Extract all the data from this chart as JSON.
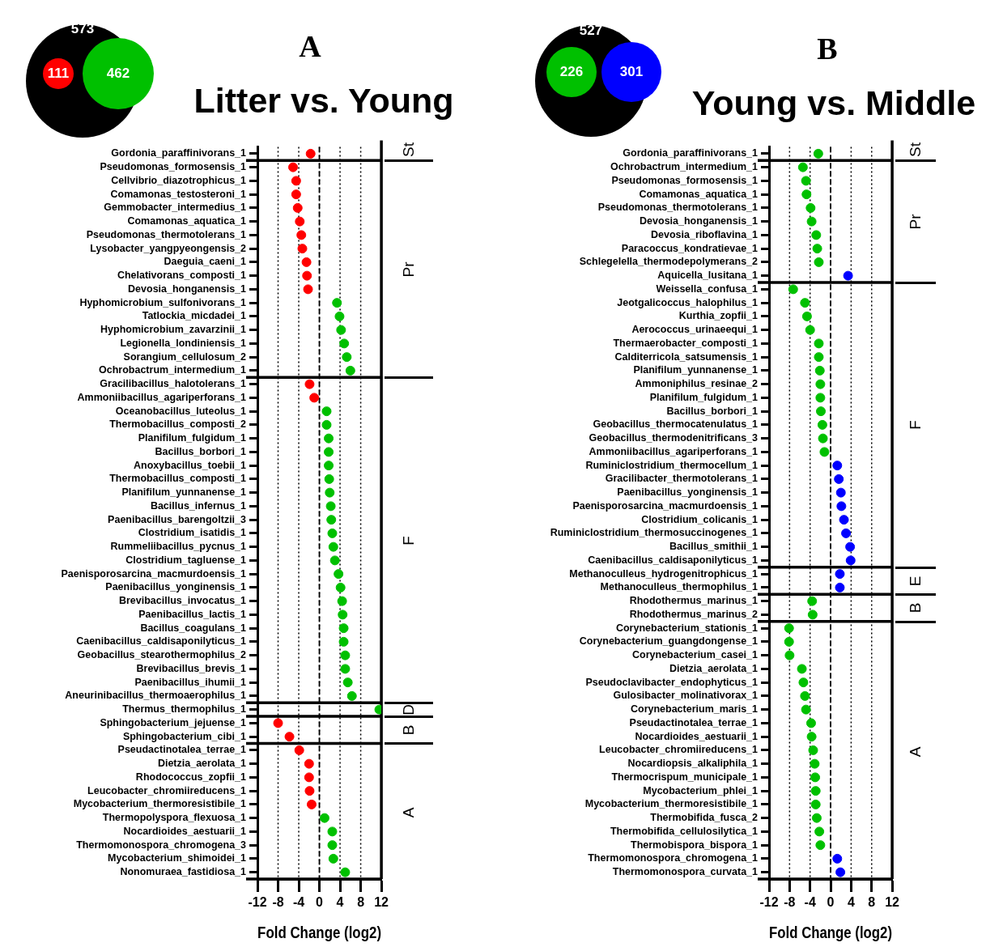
{
  "chart_data": [
    {
      "type": "scatter",
      "title": "Litter vs. Young",
      "xlabel": "Fold Change (log2)",
      "annotations": [
        "A",
        "573",
        "111",
        "462"
      ],
      "categories": [
        "Gordonia_paraffinivorans_1",
        "Pseudomonas_formosensis_1",
        "Cellvibrio_diazotrophicus_1",
        "Comamonas_testosteroni_1",
        "Gemmobacter_intermedius_1",
        "Comamonas_aquatica_1",
        "Pseudomonas_thermotolerans_1",
        "Lysobacter_yangpyeongensis_2",
        "Daeguia_caeni_1",
        "Chelativorans_composti_1",
        "Devosia_honganensis_1",
        "Hyphomicrobium_sulfonivorans_1",
        "Tatlockia_micdadei_1",
        "Hyphomicrobium_zavarzinii_1",
        "Legionella_londiniensis_1",
        "Sorangium_cellulosum_2",
        "Ochrobactrum_intermedium_1",
        "Gracilibacillus_halotolerans_1",
        "Ammoniibacillus_agariperforans_1",
        "Oceanobacillus_luteolus_1",
        "Thermobacillus_composti_2",
        "Planifilum_fulgidum_1",
        "Bacillus_borbori_1",
        "Anoxybacillus_toebii_1",
        "Thermobacillus_composti_1",
        "Planifilum_yunnanense_1",
        "Bacillus_infernus_1",
        "Paenibacillus_barengoltzii_3",
        "Clostridium_isatidis_1",
        "Rummeliibacillus_pycnus_1",
        "Clostridium_tagluense_1",
        "Paenisporosarcina_macmurdoensis_1",
        "Paenibacillus_yonginensis_1",
        "Brevibacillus_invocatus_1",
        "Paenibacillus_lactis_1",
        "Bacillus_coagulans_1",
        "Caenibacillus_caldisaponilyticus_1",
        "Geobacillus_stearothermophilus_2",
        "Brevibacillus_brevis_1",
        "Paenibacillus_ihumii_1",
        "Aneurinibacillus_thermoaerophilus_1",
        "Thermus_thermophilus_1",
        "Sphingobacterium_jejuense_1",
        "Sphingobacterium_cibi_1",
        "Pseudactinotalea_terrae_1",
        "Dietzia_aerolata_1",
        "Rhodococcus_zopfii_1",
        "Leucobacter_chromiireducens_1",
        "Mycobacterium_thermoresistibile_1",
        "Thermopolyspora_flexuosa_1",
        "Nocardioides_aestuarii_1",
        "Thermomonospora_chromogena_3",
        "Mycobacterium_shimoidei_1",
        "Nonomuraea_fastidiosa_1"
      ],
      "series": [
        {
          "name": "St",
          "values": [
            -1.7,
            null,
            null,
            null,
            null,
            null,
            null,
            null,
            null,
            null,
            null,
            null,
            null,
            null,
            null,
            null,
            null,
            null,
            null,
            null,
            null,
            null,
            null,
            null,
            null,
            null,
            null,
            null,
            null,
            null,
            null,
            null,
            null,
            null,
            null,
            null,
            null,
            null,
            null,
            null,
            null,
            null,
            null,
            null,
            null,
            null,
            null,
            null,
            null,
            null,
            null,
            null,
            null,
            null
          ],
          "colors": [
            "#ff0000",
            null,
            null,
            null,
            null,
            null,
            null,
            null,
            null,
            null,
            null,
            null,
            null,
            null,
            null,
            null,
            null,
            null,
            null,
            null,
            null,
            null,
            null,
            null,
            null,
            null,
            null,
            null,
            null,
            null,
            null,
            null,
            null,
            null,
            null,
            null,
            null,
            null,
            null,
            null,
            null,
            null,
            null,
            null,
            null,
            null,
            null,
            null,
            null,
            null,
            null,
            null,
            null,
            null
          ]
        },
        {
          "name": "Pr",
          "values": [
            null,
            -5.1,
            -4.5,
            -4.5,
            -4.2,
            -3.8,
            -3.5,
            -3.3,
            -2.5,
            -2.4,
            -2.2,
            3.4,
            3.9,
            4.2,
            4.8,
            5.3,
            6.0,
            null,
            null,
            null,
            null,
            null,
            null,
            null,
            null,
            null,
            null,
            null,
            null,
            null,
            null,
            null,
            null,
            null,
            null,
            null,
            null,
            null,
            null,
            null,
            null,
            null,
            null,
            null,
            null,
            null,
            null,
            null,
            null,
            null,
            null,
            null,
            null,
            null
          ],
          "colors": [
            null,
            "#ff0000",
            "#ff0000",
            "#ff0000",
            "#ff0000",
            "#ff0000",
            "#ff0000",
            "#ff0000",
            "#ff0000",
            "#ff0000",
            "#ff0000",
            "#00c000",
            "#00c000",
            "#00c000",
            "#00c000",
            "#00c000",
            "#00c000",
            null,
            null,
            null,
            null,
            null,
            null,
            null,
            null,
            null,
            null,
            null,
            null,
            null,
            null,
            null,
            null,
            null,
            null,
            null,
            null,
            null,
            null,
            null,
            null,
            null,
            null,
            null,
            null,
            null,
            null,
            null,
            null,
            null,
            null,
            null,
            null,
            null
          ]
        },
        {
          "name": "F",
          "values": [
            null,
            null,
            null,
            null,
            null,
            null,
            null,
            null,
            null,
            null,
            null,
            null,
            null,
            null,
            null,
            null,
            null,
            -1.9,
            -1.0,
            1.4,
            1.4,
            1.8,
            1.8,
            1.8,
            1.9,
            2.0,
            2.2,
            2.3,
            2.5,
            2.7,
            3.0,
            3.7,
            4.1,
            4.4,
            4.5,
            4.7,
            4.7,
            5.0,
            5.0,
            5.5,
            6.3,
            null,
            null,
            null,
            null,
            null,
            null,
            null,
            null,
            null,
            null,
            null,
            null,
            null
          ],
          "colors": [
            null,
            null,
            null,
            null,
            null,
            null,
            null,
            null,
            null,
            null,
            null,
            null,
            null,
            null,
            null,
            null,
            null,
            "#ff0000",
            "#ff0000",
            "#00c000",
            "#00c000",
            "#00c000",
            "#00c000",
            "#00c000",
            "#00c000",
            "#00c000",
            "#00c000",
            "#00c000",
            "#00c000",
            "#00c000",
            "#00c000",
            "#00c000",
            "#00c000",
            "#00c000",
            "#00c000",
            "#00c000",
            "#00c000",
            "#00c000",
            "#00c000",
            "#00c000",
            "#00c000",
            null,
            null,
            null,
            null,
            null,
            null,
            null,
            null,
            null,
            null,
            null,
            null,
            null
          ]
        },
        {
          "name": "D",
          "values": [
            null,
            null,
            null,
            null,
            null,
            null,
            null,
            null,
            null,
            null,
            null,
            null,
            null,
            null,
            null,
            null,
            null,
            null,
            null,
            null,
            null,
            null,
            null,
            null,
            null,
            null,
            null,
            null,
            null,
            null,
            null,
            null,
            null,
            null,
            null,
            null,
            null,
            null,
            null,
            null,
            null,
            11.6,
            null,
            null,
            null,
            null,
            null,
            null,
            null,
            null,
            null,
            null,
            null,
            null
          ],
          "colors": [
            null,
            null,
            null,
            null,
            null,
            null,
            null,
            null,
            null,
            null,
            null,
            null,
            null,
            null,
            null,
            null,
            null,
            null,
            null,
            null,
            null,
            null,
            null,
            null,
            null,
            null,
            null,
            null,
            null,
            null,
            null,
            null,
            null,
            null,
            null,
            null,
            null,
            null,
            null,
            null,
            null,
            "#00c000",
            null,
            null,
            null,
            null,
            null,
            null,
            null,
            null,
            null,
            null,
            null,
            null
          ]
        },
        {
          "name": "B",
          "values": [
            null,
            null,
            null,
            null,
            null,
            null,
            null,
            null,
            null,
            null,
            null,
            null,
            null,
            null,
            null,
            null,
            null,
            null,
            null,
            null,
            null,
            null,
            null,
            null,
            null,
            null,
            null,
            null,
            null,
            null,
            null,
            null,
            null,
            null,
            null,
            null,
            null,
            null,
            null,
            null,
            null,
            null,
            -8.0,
            -5.8,
            null,
            null,
            null,
            null,
            null,
            null,
            null,
            null,
            null,
            null
          ],
          "colors": [
            null,
            null,
            null,
            null,
            null,
            null,
            null,
            null,
            null,
            null,
            null,
            null,
            null,
            null,
            null,
            null,
            null,
            null,
            null,
            null,
            null,
            null,
            null,
            null,
            null,
            null,
            null,
            null,
            null,
            null,
            null,
            null,
            null,
            null,
            null,
            null,
            null,
            null,
            null,
            null,
            null,
            null,
            "#ff0000",
            "#ff0000",
            null,
            null,
            null,
            null,
            null,
            null,
            null,
            null,
            null,
            null
          ]
        },
        {
          "name": "A",
          "values": [
            null,
            null,
            null,
            null,
            null,
            null,
            null,
            null,
            null,
            null,
            null,
            null,
            null,
            null,
            null,
            null,
            null,
            null,
            null,
            null,
            null,
            null,
            null,
            null,
            null,
            null,
            null,
            null,
            null,
            null,
            null,
            null,
            null,
            null,
            null,
            null,
            null,
            null,
            null,
            null,
            null,
            null,
            null,
            null,
            -3.9,
            -2.0,
            -2.0,
            -1.9,
            -1.5,
            1.0,
            2.5,
            2.5,
            2.7,
            5.0
          ],
          "colors": [
            null,
            null,
            null,
            null,
            null,
            null,
            null,
            null,
            null,
            null,
            null,
            null,
            null,
            null,
            null,
            null,
            null,
            null,
            null,
            null,
            null,
            null,
            null,
            null,
            null,
            null,
            null,
            null,
            null,
            null,
            null,
            null,
            null,
            null,
            null,
            null,
            null,
            null,
            null,
            null,
            null,
            null,
            null,
            null,
            "#ff0000",
            "#ff0000",
            "#ff0000",
            "#ff0000",
            "#ff0000",
            "#00c000",
            "#00c000",
            "#00c000",
            "#00c000",
            "#00c000"
          ]
        }
      ],
      "orientation": "horizontal",
      "xlim": [
        -12,
        12
      ],
      "xticks": [
        -12,
        -8,
        -4,
        0,
        4,
        8,
        12
      ],
      "grid": "x",
      "marker": "circle",
      "legend": false,
      "ref_lines": [
        {
          "axis": "x",
          "value": 0,
          "line_style": "dashed"
        }
      ]
    },
    {
      "type": "scatter",
      "title": "Young vs. Middle",
      "xlabel": "Fold Change (log2)",
      "annotations": [
        "B",
        "527",
        "226",
        "301"
      ],
      "categories": [
        "Gordonia_paraffinivorans_1",
        "Ochrobactrum_intermedium_1",
        "Pseudomonas_formosensis_1",
        "Comamonas_aquatica_1",
        "Pseudomonas_thermotolerans_1",
        "Devosia_honganensis_1",
        "Devosia_riboflavina_1",
        "Paracoccus_kondratievae_1",
        "Schlegelella_thermodepolymerans_2",
        "Aquicella_lusitana_1",
        "Weissella_confusa_1",
        "Jeotgalicoccus_halophilus_1",
        "Kurthia_zopfii_1",
        "Aerococcus_urinaeequi_1",
        "Thermaerobacter_composti_1",
        "Calditerricola_satsumensis_1",
        "Planifilum_yunnanense_1",
        "Ammoniphilus_resinae_2",
        "Planifilum_fulgidum_1",
        "Bacillus_borbori_1",
        "Geobacillus_thermocatenulatus_1",
        "Geobacillus_thermodenitrificans_3",
        "Ammoniibacillus_agariperforans_1",
        "Ruminiclostridium_thermocellum_1",
        "Gracilibacter_thermotolerans_1",
        "Paenibacillus_yonginensis_1",
        "Paenisporosarcina_macmurdoensis_1",
        "Clostridium_colicanis_1",
        "Ruminiclostridium_thermosuccinogenes_1",
        "Bacillus_smithii_1",
        "Caenibacillus_caldisaponilyticus_1",
        "Methanoculleus_hydrogenitrophicus_1",
        "Methanoculleus_thermophilus_1",
        "Rhodothermus_marinus_1",
        "Rhodothermus_marinus_2",
        "Corynebacterium_stationis_1",
        "Corynebacterium_guangdongense_1",
        "Corynebacterium_casei_1",
        "Dietzia_aerolata_1",
        "Pseudoclavibacter_endophyticus_1",
        "Gulosibacter_molinativorax_1",
        "Corynebacterium_maris_1",
        "Pseudactinotalea_terrae_1",
        "Nocardioides_aestuarii_1",
        "Leucobacter_chromiireducens_1",
        "Nocardiopsis_alkaliphila_1",
        "Thermocrispum_municipale_1",
        "Mycobacterium_phlei_1",
        "Mycobacterium_thermoresistibile_1",
        "Thermobifida_fusca_2",
        "Thermobifida_cellulosilytica_1",
        "Thermobispora_bispora_1",
        "Thermomonospora_chromogena_1",
        "Thermomonospora_curvata_1"
      ],
      "series": [
        {
          "name": "St",
          "values": [
            -2.4,
            null,
            null,
            null,
            null,
            null,
            null,
            null,
            null,
            null,
            null,
            null,
            null,
            null,
            null,
            null,
            null,
            null,
            null,
            null,
            null,
            null,
            null,
            null,
            null,
            null,
            null,
            null,
            null,
            null,
            null,
            null,
            null,
            null,
            null,
            null,
            null,
            null,
            null,
            null,
            null,
            null,
            null,
            null,
            null,
            null,
            null,
            null,
            null,
            null,
            null,
            null,
            null,
            null
          ],
          "colors": [
            "#00c000",
            null,
            null,
            null,
            null,
            null,
            null,
            null,
            null,
            null,
            null,
            null,
            null,
            null,
            null,
            null,
            null,
            null,
            null,
            null,
            null,
            null,
            null,
            null,
            null,
            null,
            null,
            null,
            null,
            null,
            null,
            null,
            null,
            null,
            null,
            null,
            null,
            null,
            null,
            null,
            null,
            null,
            null,
            null,
            null,
            null,
            null,
            null,
            null,
            null,
            null,
            null,
            null,
            null
          ]
        },
        {
          "name": "Pr",
          "values": [
            null,
            -5.4,
            -4.8,
            -4.7,
            -3.9,
            -3.7,
            -2.8,
            -2.6,
            -2.3,
            3.4,
            null,
            null,
            null,
            null,
            null,
            null,
            null,
            null,
            null,
            null,
            null,
            null,
            null,
            null,
            null,
            null,
            null,
            null,
            null,
            null,
            null,
            null,
            null,
            null,
            null,
            null,
            null,
            null,
            null,
            null,
            null,
            null,
            null,
            null,
            null,
            null,
            null,
            null,
            null,
            null,
            null,
            null,
            null,
            null
          ],
          "colors": [
            null,
            "#00c000",
            "#00c000",
            "#00c000",
            "#00c000",
            "#00c000",
            "#00c000",
            "#00c000",
            "#00c000",
            "#0000ff",
            null,
            null,
            null,
            null,
            null,
            null,
            null,
            null,
            null,
            null,
            null,
            null,
            null,
            null,
            null,
            null,
            null,
            null,
            null,
            null,
            null,
            null,
            null,
            null,
            null,
            null,
            null,
            null,
            null,
            null,
            null,
            null,
            null,
            null,
            null,
            null,
            null,
            null,
            null,
            null,
            null,
            null,
            null,
            null
          ]
        },
        {
          "name": "F",
          "values": [
            null,
            null,
            null,
            null,
            null,
            null,
            null,
            null,
            null,
            null,
            -7.3,
            -5.0,
            -4.6,
            -4.0,
            -2.3,
            -2.3,
            -2.1,
            -2.0,
            -2.0,
            -1.9,
            -1.6,
            -1.5,
            -1.2,
            1.3,
            1.6,
            2.0,
            2.1,
            2.6,
            3.0,
            3.8,
            3.9,
            null,
            null,
            null,
            null,
            null,
            null,
            null,
            null,
            null,
            null,
            null,
            null,
            null,
            null,
            null,
            null,
            null,
            null,
            null,
            null,
            null,
            null,
            null
          ],
          "colors": [
            null,
            null,
            null,
            null,
            null,
            null,
            null,
            null,
            null,
            null,
            "#00c000",
            "#00c000",
            "#00c000",
            "#00c000",
            "#00c000",
            "#00c000",
            "#00c000",
            "#00c000",
            "#00c000",
            "#00c000",
            "#00c000",
            "#00c000",
            "#00c000",
            "#0000ff",
            "#0000ff",
            "#0000ff",
            "#0000ff",
            "#0000ff",
            "#0000ff",
            "#0000ff",
            "#0000ff",
            null,
            null,
            null,
            null,
            null,
            null,
            null,
            null,
            null,
            null,
            null,
            null,
            null,
            null,
            null,
            null,
            null,
            null,
            null,
            null,
            null,
            null,
            null
          ]
        },
        {
          "name": "E",
          "values": [
            null,
            null,
            null,
            null,
            null,
            null,
            null,
            null,
            null,
            null,
            null,
            null,
            null,
            null,
            null,
            null,
            null,
            null,
            null,
            null,
            null,
            null,
            null,
            null,
            null,
            null,
            null,
            null,
            null,
            null,
            null,
            1.8,
            1.8,
            null,
            null,
            null,
            null,
            null,
            null,
            null,
            null,
            null,
            null,
            null,
            null,
            null,
            null,
            null,
            null,
            null,
            null,
            null,
            null,
            null
          ],
          "colors": [
            null,
            null,
            null,
            null,
            null,
            null,
            null,
            null,
            null,
            null,
            null,
            null,
            null,
            null,
            null,
            null,
            null,
            null,
            null,
            null,
            null,
            null,
            null,
            null,
            null,
            null,
            null,
            null,
            null,
            null,
            null,
            "#0000ff",
            "#0000ff",
            null,
            null,
            null,
            null,
            null,
            null,
            null,
            null,
            null,
            null,
            null,
            null,
            null,
            null,
            null,
            null,
            null,
            null,
            null,
            null,
            null
          ]
        },
        {
          "name": "B",
          "values": [
            null,
            null,
            null,
            null,
            null,
            null,
            null,
            null,
            null,
            null,
            null,
            null,
            null,
            null,
            null,
            null,
            null,
            null,
            null,
            null,
            null,
            null,
            null,
            null,
            null,
            null,
            null,
            null,
            null,
            null,
            null,
            null,
            null,
            -3.6,
            -3.5,
            null,
            null,
            null,
            null,
            null,
            null,
            null,
            null,
            null,
            null,
            null,
            null,
            null,
            null,
            null,
            null,
            null,
            null,
            null
          ],
          "colors": [
            null,
            null,
            null,
            null,
            null,
            null,
            null,
            null,
            null,
            null,
            null,
            null,
            null,
            null,
            null,
            null,
            null,
            null,
            null,
            null,
            null,
            null,
            null,
            null,
            null,
            null,
            null,
            null,
            null,
            null,
            null,
            null,
            null,
            "#00c000",
            "#00c000",
            null,
            null,
            null,
            null,
            null,
            null,
            null,
            null,
            null,
            null,
            null,
            null,
            null,
            null,
            null,
            null,
            null,
            null,
            null
          ]
        },
        {
          "name": "A",
          "values": [
            null,
            null,
            null,
            null,
            null,
            null,
            null,
            null,
            null,
            null,
            null,
            null,
            null,
            null,
            null,
            null,
            null,
            null,
            null,
            null,
            null,
            null,
            null,
            null,
            null,
            null,
            null,
            null,
            null,
            null,
            null,
            null,
            null,
            null,
            null,
            -8.1,
            -8.1,
            -8.0,
            -5.6,
            -5.3,
            -5.0,
            -4.8,
            -3.8,
            -3.7,
            -3.4,
            -3.1,
            -3.0,
            -2.9,
            -2.9,
            -2.7,
            -2.2,
            -2.0,
            1.3,
            1.9
          ],
          "colors": [
            null,
            null,
            null,
            null,
            null,
            null,
            null,
            null,
            null,
            null,
            null,
            null,
            null,
            null,
            null,
            null,
            null,
            null,
            null,
            null,
            null,
            null,
            null,
            null,
            null,
            null,
            null,
            null,
            null,
            null,
            null,
            null,
            null,
            null,
            null,
            "#00c000",
            "#00c000",
            "#00c000",
            "#00c000",
            "#00c000",
            "#00c000",
            "#00c000",
            "#00c000",
            "#00c000",
            "#00c000",
            "#00c000",
            "#00c000",
            "#00c000",
            "#00c000",
            "#00c000",
            "#00c000",
            "#00c000",
            "#0000ff",
            "#0000ff"
          ]
        }
      ],
      "orientation": "horizontal",
      "xlim": [
        -12,
        12
      ],
      "xticks": [
        -12,
        -8,
        -4,
        0,
        4,
        8,
        12
      ],
      "grid": "x",
      "marker": "circle",
      "legend": false,
      "ref_lines": [
        {
          "axis": "x",
          "value": 0,
          "line_style": "dashed"
        }
      ]
    }
  ]
}
